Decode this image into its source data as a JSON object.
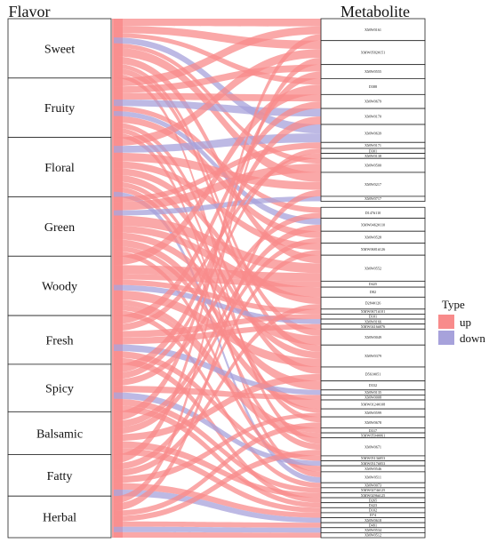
{
  "chart_data": {
    "type": "sankey",
    "left_title": "Flavor",
    "right_title": "Metabolite",
    "legend": {
      "title": "Type",
      "items": [
        {
          "name": "up",
          "color": "#f88b8b"
        },
        {
          "name": "down",
          "color": "#a7a2db"
        }
      ]
    },
    "flavors": [
      {
        "name": "Sweet",
        "weight": 1.0
      },
      {
        "name": "Fruity",
        "weight": 1.0
      },
      {
        "name": "Floral",
        "weight": 1.0
      },
      {
        "name": "Green",
        "weight": 1.0
      },
      {
        "name": "Woody",
        "weight": 1.0
      },
      {
        "name": "Fresh",
        "weight": 0.82
      },
      {
        "name": "Spicy",
        "weight": 0.8
      },
      {
        "name": "Balsamic",
        "weight": 0.72
      },
      {
        "name": "Fatty",
        "weight": 0.7
      },
      {
        "name": "Herbal",
        "weight": 0.7
      }
    ],
    "metabolites": [
      {
        "name": "XMW0161",
        "weight": 2.2
      },
      {
        "name": "XMW0582#151",
        "weight": 2.4
      },
      {
        "name": "XMW0555",
        "weight": 1.4
      },
      {
        "name": "D388",
        "weight": 1.6
      },
      {
        "name": "XMW0679",
        "weight": 1.4
      },
      {
        "name": "XMW0170",
        "weight": 1.6
      },
      {
        "name": "XMW0639",
        "weight": 1.8
      },
      {
        "name": "XMW0171",
        "weight": 0.6
      },
      {
        "name": "D301",
        "weight": 0.5
      },
      {
        "name": "XMW0138",
        "weight": 0.5
      },
      {
        "name": "XMW0500",
        "weight": 1.4
      },
      {
        "name": "XMW0217",
        "weight": 2.4
      },
      {
        "name": "XMW0717",
        "weight": 0.5
      },
      {
        "name": "XMW0511",
        "weight": 0.6
      },
      {
        "name": "D147#110",
        "weight": 1.1
      },
      {
        "name": "XMW0462#110",
        "weight": 1.3
      },
      {
        "name": "XMW0528",
        "weight": 1.2
      },
      {
        "name": "XMW0681#126",
        "weight": 1.2
      },
      {
        "name": "XMW0552",
        "weight": 2.6
      },
      {
        "name": "D425",
        "weight": 0.6
      },
      {
        "name": "D82",
        "weight": 1.0
      },
      {
        "name": "D284#126",
        "weight": 1.2
      },
      {
        "name": "XMW0671#101",
        "weight": 0.5
      },
      {
        "name": "D101",
        "weight": 0.5
      },
      {
        "name": "XMW0166",
        "weight": 0.5
      },
      {
        "name": "XMW0416#076",
        "weight": 0.5
      },
      {
        "name": "XMW0049",
        "weight": 1.6
      },
      {
        "name": "XMW0379",
        "weight": 2.2
      },
      {
        "name": "D561#051",
        "weight": 1.4
      },
      {
        "name": "D332",
        "weight": 0.9
      },
      {
        "name": "XMW0135",
        "weight": 0.5
      },
      {
        "name": "XMW0008",
        "weight": 0.5
      },
      {
        "name": "XMW0124#108",
        "weight": 0.9
      },
      {
        "name": "XMW0599",
        "weight": 0.8
      },
      {
        "name": "XMW0678",
        "weight": 1.1
      },
      {
        "name": "D317",
        "weight": 0.5
      },
      {
        "name": "XMW0594#061",
        "weight": 0.5
      },
      {
        "name": "XMW0671",
        "weight": 1.8
      },
      {
        "name": "XMW0513#053",
        "weight": 0.5
      },
      {
        "name": "XMW0517#053",
        "weight": 0.5
      },
      {
        "name": "XMW0546",
        "weight": 0.6
      },
      {
        "name": "XMW0511",
        "weight": 1.1
      },
      {
        "name": "XMW0073",
        "weight": 0.5
      },
      {
        "name": "XMW0274#125",
        "weight": 0.5
      },
      {
        "name": "XMW0296#125",
        "weight": 0.5
      },
      {
        "name": "D265",
        "weight": 0.5
      },
      {
        "name": "D423",
        "weight": 0.5
      },
      {
        "name": "D102",
        "weight": 0.5
      },
      {
        "name": "D74",
        "weight": 0.5
      },
      {
        "name": "XMW0618",
        "weight": 0.5
      },
      {
        "name": "D491",
        "weight": 0.5
      },
      {
        "name": "XMW0534",
        "weight": 0.5
      },
      {
        "name": "XMW0512",
        "weight": 0.5
      }
    ],
    "links": [
      {
        "flavor": "Sweet",
        "metabolite": "XMW0161",
        "type": "up",
        "value": 0.5
      },
      {
        "flavor": "Sweet",
        "metabolite": "XMW0582#151",
        "type": "up",
        "value": 0.5
      },
      {
        "flavor": "Sweet",
        "metabolite": "XMW0217",
        "type": "up",
        "value": 0.6
      },
      {
        "flavor": "Sweet",
        "metabolite": "XMW0639",
        "type": "down",
        "value": 0.4
      },
      {
        "flavor": "Sweet",
        "metabolite": "XMW0552",
        "type": "up",
        "value": 0.5
      },
      {
        "flavor": "Sweet",
        "metabolite": "XMW0379",
        "type": "up",
        "value": 0.4
      },
      {
        "flavor": "Sweet",
        "metabolite": "XMW0500",
        "type": "up",
        "value": 0.3
      },
      {
        "flavor": "Sweet",
        "metabolite": "D388",
        "type": "up",
        "value": 0.3
      },
      {
        "flavor": "Sweet",
        "metabolite": "XMW0049",
        "type": "up",
        "value": 0.3
      },
      {
        "flavor": "Sweet",
        "metabolite": "XMW0671",
        "type": "up",
        "value": 0.3
      },
      {
        "flavor": "Fruity",
        "metabolite": "XMW0161",
        "type": "up",
        "value": 0.5
      },
      {
        "flavor": "Fruity",
        "metabolite": "XMW0170",
        "type": "down",
        "value": 0.4
      },
      {
        "flavor": "Fruity",
        "metabolite": "XMW0555",
        "type": "up",
        "value": 0.4
      },
      {
        "flavor": "Fruity",
        "metabolite": "XMW0679",
        "type": "up",
        "value": 0.4
      },
      {
        "flavor": "Fruity",
        "metabolite": "D147#110",
        "type": "up",
        "value": 0.3
      },
      {
        "flavor": "Fruity",
        "metabolite": "XMW0462#110",
        "type": "down",
        "value": 0.3
      },
      {
        "flavor": "Fruity",
        "metabolite": "XMW0528",
        "type": "up",
        "value": 0.4
      },
      {
        "flavor": "Fruity",
        "metabolite": "D561#051",
        "type": "up",
        "value": 0.3
      },
      {
        "flavor": "Fruity",
        "metabolite": "XMW0678",
        "type": "up",
        "value": 0.3
      },
      {
        "flavor": "Fruity",
        "metabolite": "XMW0511",
        "type": "up",
        "value": 0.3
      },
      {
        "flavor": "Floral",
        "metabolite": "XMW0582#151",
        "type": "up",
        "value": 0.5
      },
      {
        "flavor": "Floral",
        "metabolite": "XMW0639",
        "type": "down",
        "value": 0.4
      },
      {
        "flavor": "Floral",
        "metabolite": "XMW0217",
        "type": "up",
        "value": 0.5
      },
      {
        "flavor": "Floral",
        "metabolite": "XMW0511",
        "type": "down",
        "value": 0.3
      },
      {
        "flavor": "Floral",
        "metabolite": "XMW0681#126",
        "type": "up",
        "value": 0.4
      },
      {
        "flavor": "Floral",
        "metabolite": "D284#126",
        "type": "up",
        "value": 0.4
      },
      {
        "flavor": "Floral",
        "metabolite": "XMW0379",
        "type": "up",
        "value": 0.4
      },
      {
        "flavor": "Floral",
        "metabolite": "XMW0599",
        "type": "up",
        "value": 0.3
      },
      {
        "flavor": "Floral",
        "metabolite": "XMW0671",
        "type": "up",
        "value": 0.3
      },
      {
        "flavor": "Green",
        "metabolite": "XMW0500",
        "type": "up",
        "value": 0.5
      },
      {
        "flavor": "Green",
        "metabolite": "XMW0171",
        "type": "up",
        "value": 0.3
      },
      {
        "flavor": "Green",
        "metabolite": "XMW0552",
        "type": "up",
        "value": 0.6
      },
      {
        "flavor": "Green",
        "metabolite": "XMW0717",
        "type": "down",
        "value": 0.3
      },
      {
        "flavor": "Green",
        "metabolite": "D82",
        "type": "up",
        "value": 0.4
      },
      {
        "flavor": "Green",
        "metabolite": "XMW0049",
        "type": "up",
        "value": 0.4
      },
      {
        "flavor": "Green",
        "metabolite": "D332",
        "type": "up",
        "value": 0.4
      },
      {
        "flavor": "Green",
        "metabolite": "XMW0124#108",
        "type": "up",
        "value": 0.3
      },
      {
        "flavor": "Green",
        "metabolite": "XMW0546",
        "type": "up",
        "value": 0.3
      },
      {
        "flavor": "Woody",
        "metabolite": "D388",
        "type": "up",
        "value": 0.5
      },
      {
        "flavor": "Woody",
        "metabolite": "XMW0552",
        "type": "up",
        "value": 0.5
      },
      {
        "flavor": "Woody",
        "metabolite": "D425",
        "type": "up",
        "value": 0.3
      },
      {
        "flavor": "Woody",
        "metabolite": "XMW0671#101",
        "type": "up",
        "value": 0.3
      },
      {
        "flavor": "Woody",
        "metabolite": "XMW0166",
        "type": "down",
        "value": 0.3
      },
      {
        "flavor": "Woody",
        "metabolite": "XMW0379",
        "type": "up",
        "value": 0.5
      },
      {
        "flavor": "Woody",
        "metabolite": "D317",
        "type": "up",
        "value": 0.3
      },
      {
        "flavor": "Woody",
        "metabolite": "XMW0594#061",
        "type": "up",
        "value": 0.3
      },
      {
        "flavor": "Woody",
        "metabolite": "XMW0073",
        "type": "up",
        "value": 0.3
      },
      {
        "flavor": "Fresh",
        "metabolite": "XMW0679",
        "type": "up",
        "value": 0.4
      },
      {
        "flavor": "Fresh",
        "metabolite": "XMW0138",
        "type": "up",
        "value": 0.3
      },
      {
        "flavor": "Fresh",
        "metabolite": "D101",
        "type": "up",
        "value": 0.3
      },
      {
        "flavor": "Fresh",
        "metabolite": "XMW0416#076",
        "type": "up",
        "value": 0.3
      },
      {
        "flavor": "Fresh",
        "metabolite": "XMW0135",
        "type": "down",
        "value": 0.3
      },
      {
        "flavor": "Fresh",
        "metabolite": "XMW0513#053",
        "type": "up",
        "value": 0.3
      },
      {
        "flavor": "Fresh",
        "metabolite": "D265",
        "type": "up",
        "value": 0.3
      },
      {
        "flavor": "Spicy",
        "metabolite": "XMW0170",
        "type": "up",
        "value": 0.4
      },
      {
        "flavor": "Spicy",
        "metabolite": "D301",
        "type": "up",
        "value": 0.3
      },
      {
        "flavor": "Spicy",
        "metabolite": "D147#110",
        "type": "up",
        "value": 0.3
      },
      {
        "flavor": "Spicy",
        "metabolite": "XMW0008",
        "type": "up",
        "value": 0.3
      },
      {
        "flavor": "Spicy",
        "metabolite": "XMW0517#053",
        "type": "down",
        "value": 0.3
      },
      {
        "flavor": "Spicy",
        "metabolite": "XMW0274#125",
        "type": "up",
        "value": 0.3
      },
      {
        "flavor": "Spicy",
        "metabolite": "D423",
        "type": "up",
        "value": 0.3
      },
      {
        "flavor": "Balsamic",
        "metabolite": "XMW0555",
        "type": "up",
        "value": 0.4
      },
      {
        "flavor": "Balsamic",
        "metabolite": "XMW0462#110",
        "type": "up",
        "value": 0.3
      },
      {
        "flavor": "Balsamic",
        "metabolite": "XMW0528",
        "type": "up",
        "value": 0.3
      },
      {
        "flavor": "Balsamic",
        "metabolite": "D561#051",
        "type": "up",
        "value": 0.3
      },
      {
        "flavor": "Balsamic",
        "metabolite": "XMW0296#125",
        "type": "up",
        "value": 0.3
      },
      {
        "flavor": "Balsamic",
        "metabolite": "D102",
        "type": "up",
        "value": 0.3
      },
      {
        "flavor": "Fatty",
        "metabolite": "XMW0161",
        "type": "up",
        "value": 0.4
      },
      {
        "flavor": "Fatty",
        "metabolite": "XMW0681#126",
        "type": "up",
        "value": 0.3
      },
      {
        "flavor": "Fatty",
        "metabolite": "D284#126",
        "type": "up",
        "value": 0.3
      },
      {
        "flavor": "Fatty",
        "metabolite": "XMW0599",
        "type": "up",
        "value": 0.3
      },
      {
        "flavor": "Fatty",
        "metabolite": "D74",
        "type": "up",
        "value": 0.3
      },
      {
        "flavor": "Fatty",
        "metabolite": "XMW0618",
        "type": "down",
        "value": 0.3
      },
      {
        "flavor": "Herbal",
        "metabolite": "XMW0582#151",
        "type": "up",
        "value": 0.4
      },
      {
        "flavor": "Herbal",
        "metabolite": "XMW0217",
        "type": "up",
        "value": 0.4
      },
      {
        "flavor": "Herbal",
        "metabolite": "XMW0678",
        "type": "up",
        "value": 0.3
      },
      {
        "flavor": "Herbal",
        "metabolite": "XMW0671",
        "type": "up",
        "value": 0.3
      },
      {
        "flavor": "Herbal",
        "metabolite": "D491",
        "type": "up",
        "value": 0.3
      },
      {
        "flavor": "Herbal",
        "metabolite": "XMW0534",
        "type": "down",
        "value": 0.3
      },
      {
        "flavor": "Herbal",
        "metabolite": "XMW0512",
        "type": "up",
        "value": 0.3
      }
    ]
  }
}
